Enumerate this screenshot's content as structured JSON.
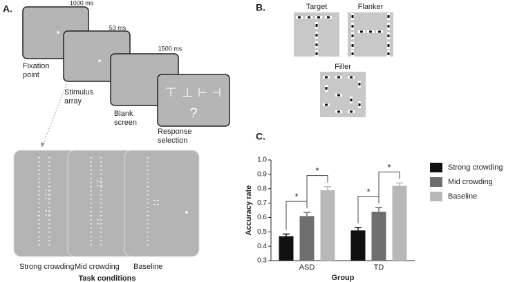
{
  "panel_a": {
    "label": "A.",
    "screens": [
      {
        "duration": "1000 ms",
        "caption": [
          "Fixation",
          "point"
        ]
      },
      {
        "duration": "53 ms",
        "caption": [
          "Stimulus",
          "array"
        ]
      },
      {
        "duration": "1500 ms",
        "caption": [
          "Blank",
          "screen"
        ]
      },
      {
        "symbol": "?",
        "caption": [
          "Response",
          "selection"
        ]
      }
    ],
    "conditions": [
      "Strong crowding",
      "Mid crowding",
      "Baseline"
    ],
    "conditions_title": "Task conditions"
  },
  "panel_b": {
    "label": "B.",
    "stimuli": [
      "Target",
      "Flanker",
      "Filler"
    ]
  },
  "panel_c": {
    "label": "C."
  },
  "chart_data": {
    "type": "bar",
    "xlabel": "Group",
    "ylabel": "Accuracy rate",
    "categories": [
      "ASD",
      "TD"
    ],
    "series": [
      {
        "name": "Strong crowding",
        "color": "#111111",
        "values": [
          0.47,
          0.51
        ],
        "errors": [
          0.015,
          0.02
        ]
      },
      {
        "name": "Mid crowding",
        "color": "#6e6e6e",
        "values": [
          0.61,
          0.64
        ],
        "errors": [
          0.025,
          0.03
        ]
      },
      {
        "name": "Baseline",
        "color": "#b8b8b8",
        "values": [
          0.79,
          0.82
        ],
        "errors": [
          0.025,
          0.02
        ]
      }
    ],
    "ylim": [
      0.3,
      1.0
    ],
    "yticks": [
      0.3,
      0.4,
      0.5,
      0.6,
      0.7,
      0.8,
      0.9,
      {
        "value": 1.0,
        "label": "1.0"
      }
    ],
    "annotations": [
      "*",
      "*",
      "*",
      "*"
    ],
    "legend": "right"
  }
}
